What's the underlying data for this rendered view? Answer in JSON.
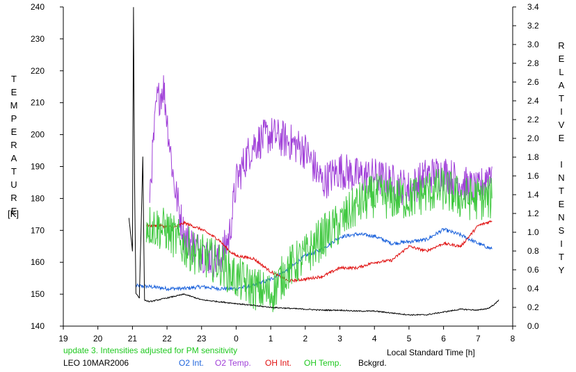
{
  "chart_data": {
    "type": "line",
    "left_axis_label": "TEMPERATURE",
    "left_axis_unit": "[K]",
    "right_axis_label": "RELATIVE INTENSITY",
    "xlabel": "Local Standard Time [h]",
    "xlim": [
      19,
      32
    ],
    "x_tick_labels": [
      "19",
      "20",
      "21",
      "22",
      "23",
      "0",
      "1",
      "2",
      "3",
      "4",
      "5",
      "6",
      "7",
      "8"
    ],
    "ylim_left": [
      140,
      240
    ],
    "ylim_right": [
      0.0,
      3.4
    ],
    "y_left_ticks": [
      140,
      150,
      160,
      170,
      180,
      190,
      200,
      210,
      220,
      230,
      240
    ],
    "y_right_ticks": [
      "0.0",
      "0.2",
      "0.4",
      "0.6",
      "0.8",
      "1.0",
      "1.2",
      "1.4",
      "1.6",
      "1.8",
      "2.0",
      "2.2",
      "2.4",
      "2.6",
      "2.8",
      "3.0",
      "3.2",
      "3.4"
    ],
    "note": "update 3. Intensities adjusted for PM sensitivity",
    "station": "LEO 10MAR2006",
    "series": [
      {
        "name": "O2 Int.",
        "axis": "right",
        "color": "#1e64dc",
        "noise": 0.02,
        "x": [
          21.1,
          21.5,
          22.0,
          22.5,
          23.0,
          23.5,
          24.0,
          24.5,
          25.0,
          25.5,
          26.0,
          26.5,
          27.0,
          27.5,
          28.0,
          28.5,
          29.0,
          29.5,
          30.0,
          30.5,
          31.0,
          31.4
        ],
        "y": [
          0.43,
          0.42,
          0.4,
          0.4,
          0.42,
          0.4,
          0.4,
          0.43,
          0.5,
          0.6,
          0.75,
          0.82,
          0.95,
          0.98,
          0.96,
          0.88,
          0.9,
          0.92,
          1.03,
          0.97,
          0.88,
          0.82
        ]
      },
      {
        "name": "O2 Temp.",
        "axis": "left",
        "color": "#a040d8",
        "noise": 6,
        "x": [
          21.5,
          21.7,
          21.9,
          22.0,
          22.2,
          22.5,
          23.0,
          23.5,
          23.8,
          24.0,
          24.3,
          24.5,
          25.0,
          25.5,
          26.0,
          26.5,
          27.0,
          27.5,
          28.0,
          28.5,
          29.0,
          29.5,
          30.0,
          30.5,
          31.0,
          31.4
        ],
        "y": [
          182,
          210,
          215,
          205,
          185,
          168,
          163,
          160,
          168,
          185,
          193,
          197,
          200,
          198,
          195,
          185,
          189,
          187,
          187,
          185,
          183,
          187,
          188,
          185,
          182,
          190
        ]
      },
      {
        "name": "OH Int.",
        "axis": "right",
        "color": "#e01010",
        "noise": 0.015,
        "x": [
          21.4,
          21.8,
          22.2,
          22.5,
          23.0,
          23.5,
          23.8,
          24.0,
          24.5,
          25.0,
          25.5,
          26.0,
          26.5,
          27.0,
          27.5,
          28.0,
          28.5,
          29.0,
          29.5,
          30.0,
          30.5,
          31.0,
          31.4
        ],
        "y": [
          1.07,
          1.07,
          1.05,
          1.1,
          1.03,
          0.92,
          0.8,
          0.75,
          0.72,
          0.58,
          0.48,
          0.5,
          0.53,
          0.62,
          0.62,
          0.68,
          0.7,
          0.85,
          0.8,
          0.88,
          0.85,
          1.07,
          1.12
        ]
      },
      {
        "name": "OH Temp.",
        "axis": "left",
        "color": "#40c840",
        "noise": 7,
        "x": [
          21.4,
          22.0,
          22.5,
          23.0,
          23.5,
          24.0,
          24.5,
          25.0,
          25.5,
          26.0,
          26.5,
          27.0,
          27.5,
          28.0,
          28.5,
          29.0,
          29.5,
          30.0,
          30.5,
          31.0,
          31.4
        ],
        "y": [
          172,
          170,
          165,
          162,
          160,
          155,
          152,
          150,
          158,
          162,
          168,
          172,
          178,
          181,
          180,
          180,
          182,
          183,
          180,
          180,
          180
        ]
      },
      {
        "name": "Bckgrd.",
        "axis": "right",
        "color": "#000000",
        "noise": 0.006,
        "x": [
          20.9,
          21.0,
          21.03,
          21.06,
          21.1,
          21.2,
          21.3,
          21.35,
          21.4,
          21.5,
          22.0,
          22.5,
          23.0,
          23.5,
          24.0,
          24.5,
          25.0,
          25.5,
          26.0,
          26.5,
          27.0,
          27.5,
          28.0,
          28.5,
          29.0,
          29.5,
          30.0,
          30.5,
          31.0,
          31.3,
          31.5,
          31.6
        ],
        "y": [
          1.15,
          0.8,
          3.4,
          1.6,
          0.35,
          0.3,
          1.8,
          0.28,
          0.27,
          0.26,
          0.3,
          0.34,
          0.28,
          0.26,
          0.24,
          0.22,
          0.2,
          0.19,
          0.18,
          0.17,
          0.17,
          0.16,
          0.16,
          0.14,
          0.12,
          0.12,
          0.15,
          0.18,
          0.17,
          0.19,
          0.24,
          0.28
        ]
      }
    ]
  }
}
